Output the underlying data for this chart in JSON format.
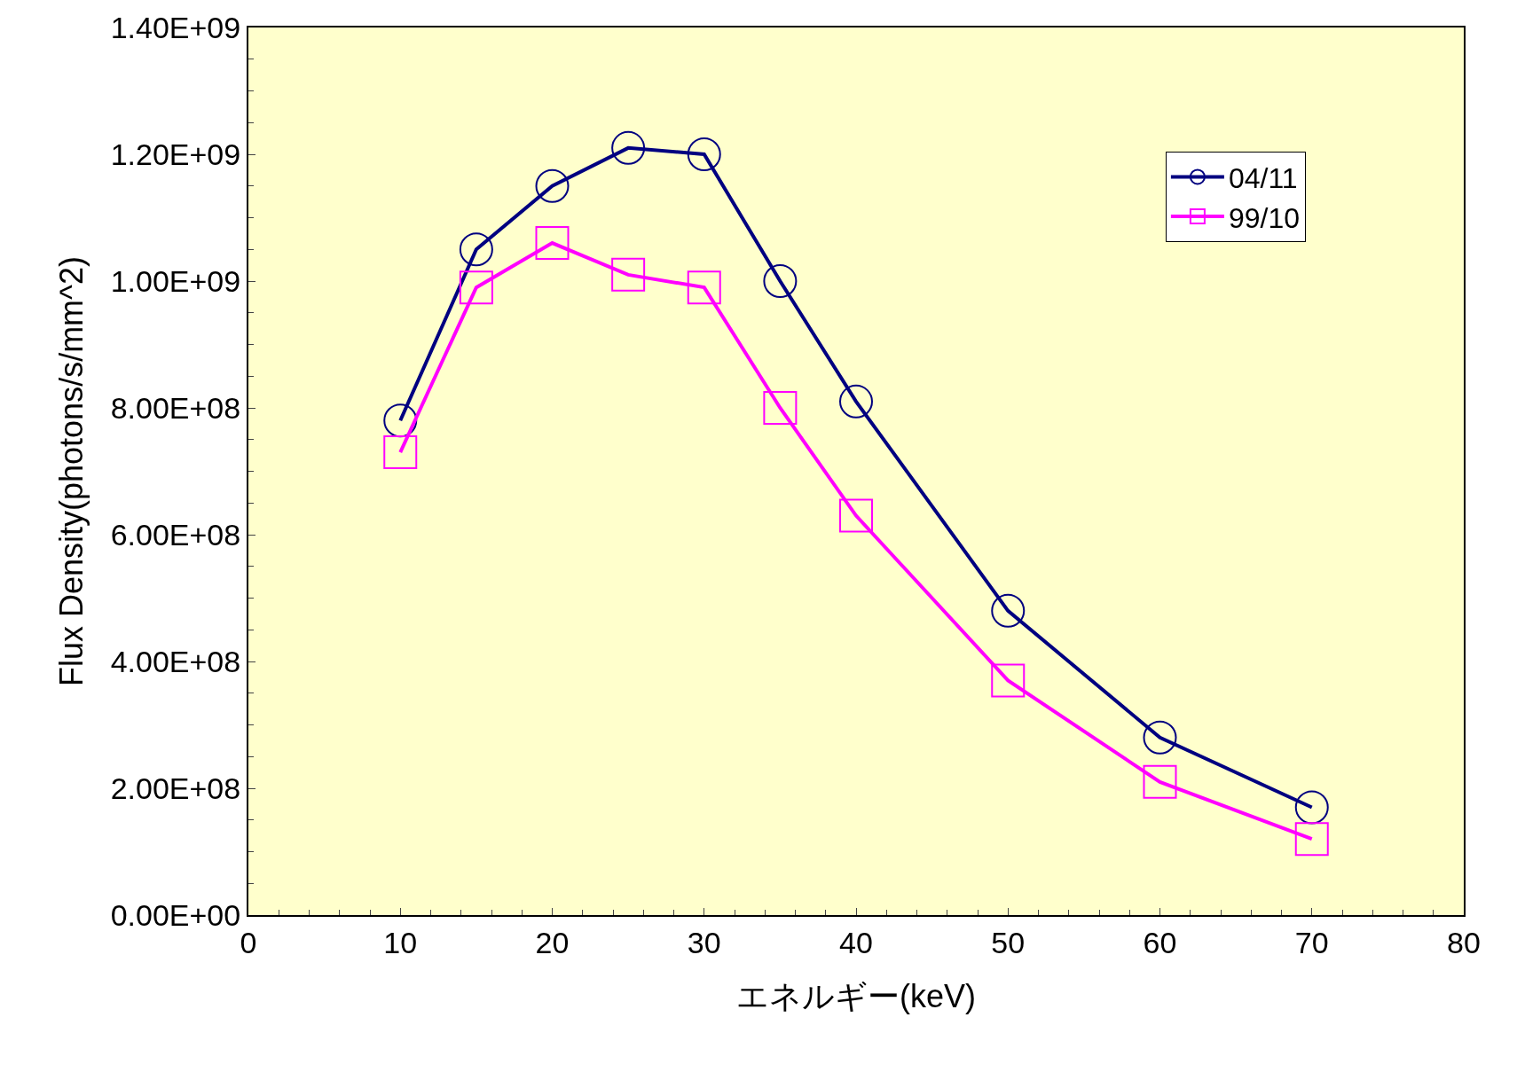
{
  "chart_data": {
    "type": "line",
    "xlabel": "エネルギー(keV)",
    "ylabel": "Flux Density(photons/s/mm^2)",
    "x": [
      10,
      15,
      20,
      25,
      30,
      35,
      40,
      50,
      60,
      70
    ],
    "series": [
      {
        "name": "04/11",
        "color": "#000080",
        "marker": "circle",
        "values": [
          780000000.0,
          1050000000.0,
          1150000000.0,
          1210000000.0,
          1200000000.0,
          1000000000.0,
          810000000.0,
          480000000.0,
          280000000.0,
          170000000.0
        ]
      },
      {
        "name": "99/10",
        "color": "#ff00ff",
        "marker": "square",
        "values": [
          730000000.0,
          990000000.0,
          1060000000.0,
          1010000000.0,
          990000000.0,
          800000000.0,
          630000000.0,
          370000000.0,
          210000000.0,
          120000000.0
        ]
      }
    ],
    "xlim": [
      0,
      80
    ],
    "xticks": [
      0,
      10,
      20,
      30,
      40,
      50,
      60,
      70,
      80
    ],
    "ylim": [
      0,
      1400000000.0
    ],
    "yticks": [
      {
        "value": 0,
        "label": "0.00E+00"
      },
      {
        "value": 200000000.0,
        "label": "2.00E+08"
      },
      {
        "value": 400000000.0,
        "label": "4.00E+08"
      },
      {
        "value": 600000000.0,
        "label": "6.00E+08"
      },
      {
        "value": 800000000.0,
        "label": "8.00E+08"
      },
      {
        "value": 1000000000.0,
        "label": "1.00E+09"
      },
      {
        "value": 1200000000.0,
        "label": "1.20E+09"
      },
      {
        "value": 1400000000.0,
        "label": "1.40E+09"
      }
    ],
    "grid": false,
    "legend": "top right",
    "line_style": "solid"
  }
}
